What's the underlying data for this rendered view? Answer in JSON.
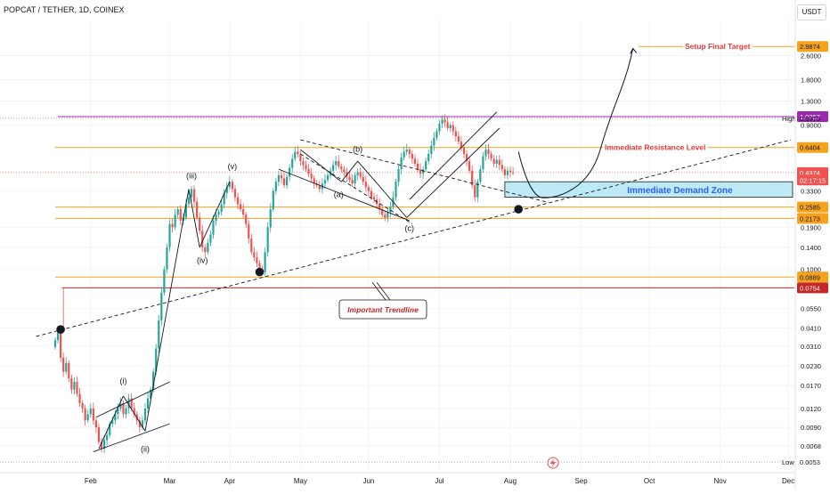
{
  "header": {
    "symbol_line": "POPCAT / TETHER, 1D, COINEX"
  },
  "currency_button": {
    "label": "USDT"
  },
  "colors": {
    "up": "#26a69a",
    "down": "#ef5350",
    "orange": "#f7a21b",
    "red_line": "#c62828",
    "purple": "#9c27b0",
    "blue_label": "#2962ff",
    "zone_fill": "#a7e3f2",
    "text": "#131722"
  },
  "chart_data": {
    "type": "candlestick",
    "title": "POPCAT / TETHER, 1D, COINEX",
    "x_axis": {
      "ticks": [
        "Feb",
        "Mar",
        "Apr",
        "May",
        "Jun",
        "Jul",
        "Aug",
        "Sep",
        "Oct",
        "Nov",
        "Dec"
      ]
    },
    "y_axis": {
      "scale": "log",
      "range": [
        0.0047,
        4.5
      ],
      "ticks": [
        "2.6000",
        "1.8000",
        "1.3000",
        "0.9000",
        "0.3300",
        "0.1900",
        "0.1400",
        "0.1000",
        "0.0550",
        "0.0410",
        "0.0310",
        "0.0230",
        "0.0170",
        "0.0120",
        "0.0090",
        "0.0068"
      ]
    },
    "price_labels": [
      {
        "text": "2.9874",
        "value": 2.9874,
        "style": "orange"
      },
      {
        "text": "1.0257",
        "value": 1.0257,
        "style": "purple"
      },
      {
        "text": "0.9975",
        "value": 0.9975,
        "style": "plain"
      },
      {
        "text": "0.6404",
        "value": 0.6404,
        "style": "orange"
      },
      {
        "text": "0.4374",
        "value": 0.4374,
        "style": "current"
      },
      {
        "text": "02:17:15",
        "value": 0.39,
        "style": "current"
      },
      {
        "text": "0.2585",
        "value": 0.2585,
        "style": "orange"
      },
      {
        "text": "0.2173",
        "value": 0.2173,
        "style": "orange"
      },
      {
        "text": "0.0889",
        "value": 0.0889,
        "style": "orange"
      },
      {
        "text": "0.0754",
        "value": 0.0754,
        "style": "red"
      },
      {
        "text": "0.0053",
        "value": 0.0053,
        "style": "plain"
      }
    ],
    "levels": [
      {
        "value": 2.9874,
        "label": "Setup Final Target",
        "label_color": "#e53935"
      },
      {
        "value": 1.0257,
        "label": "",
        "label_color": ""
      },
      {
        "value": 0.9975,
        "label": "High",
        "label_color": "#131722"
      },
      {
        "value": 0.6404,
        "label": "Immediate Resistance Level",
        "label_color": "#e53935"
      },
      {
        "value": 0.2585,
        "label": "",
        "label_color": ""
      },
      {
        "value": 0.2173,
        "label": "",
        "label_color": ""
      },
      {
        "value": 0.0889,
        "label": "",
        "label_color": ""
      },
      {
        "value": 0.0754,
        "label": "",
        "label_color": ""
      },
      {
        "value": 0.0053,
        "label": "Low",
        "label_color": "#131722"
      }
    ],
    "demand_zone": {
      "label": "Immediate Demand Zone",
      "low": 0.3,
      "high": 0.38
    },
    "trendline_label": "Important Trendline",
    "wave_labels": [
      "(i)",
      "(ii)",
      "(iii)",
      "(iv)",
      "(v)",
      "(a)",
      "(b)",
      "(c)"
    ],
    "series": [
      {
        "name": "POPCAT/USDT daily",
        "day_values": [
          0.034,
          0.04,
          0.026,
          0.021,
          0.024,
          0.019,
          0.016,
          0.018,
          0.015,
          0.013,
          0.012,
          0.01,
          0.011,
          0.012,
          0.01,
          0.009,
          0.0072,
          0.0065,
          0.0074,
          0.008,
          0.0095,
          0.01,
          0.011,
          0.012,
          0.013,
          0.011,
          0.012,
          0.014,
          0.012,
          0.011,
          0.01,
          0.009,
          0.01,
          0.012,
          0.014,
          0.016,
          0.021,
          0.03,
          0.046,
          0.07,
          0.1,
          0.14,
          0.2,
          0.19,
          0.23,
          0.25,
          0.21,
          0.22,
          0.27,
          0.3,
          0.34,
          0.28,
          0.22,
          0.18,
          0.14,
          0.13,
          0.15,
          0.17,
          0.21,
          0.23,
          0.24,
          0.27,
          0.32,
          0.35,
          0.38,
          0.34,
          0.3,
          0.27,
          0.25,
          0.23,
          0.2,
          0.16,
          0.13,
          0.12,
          0.11,
          0.1,
          0.096,
          0.13,
          0.19,
          0.25,
          0.33,
          0.38,
          0.42,
          0.4,
          0.36,
          0.41,
          0.47,
          0.54,
          0.6,
          0.58,
          0.52,
          0.49,
          0.46,
          0.43,
          0.4,
          0.37,
          0.36,
          0.34,
          0.37,
          0.39,
          0.42,
          0.45,
          0.49,
          0.52,
          0.48,
          0.46,
          0.44,
          0.41,
          0.39,
          0.37,
          0.42,
          0.44,
          0.41,
          0.38,
          0.35,
          0.33,
          0.3,
          0.29,
          0.27,
          0.25,
          0.23,
          0.22,
          0.24,
          0.26,
          0.3,
          0.38,
          0.46,
          0.55,
          0.6,
          0.62,
          0.58,
          0.54,
          0.5,
          0.46,
          0.43,
          0.46,
          0.52,
          0.58,
          0.66,
          0.74,
          0.82,
          0.92,
          0.98,
          0.94,
          0.86,
          0.9,
          0.82,
          0.76,
          0.7,
          0.64,
          0.58,
          0.52,
          0.45,
          0.36,
          0.3,
          0.38,
          0.46,
          0.56,
          0.62,
          0.58,
          0.54,
          0.5,
          0.53,
          0.49,
          0.46,
          0.42,
          0.45,
          0.44,
          0.4374
        ]
      }
    ],
    "projection_target": 2.9874
  }
}
